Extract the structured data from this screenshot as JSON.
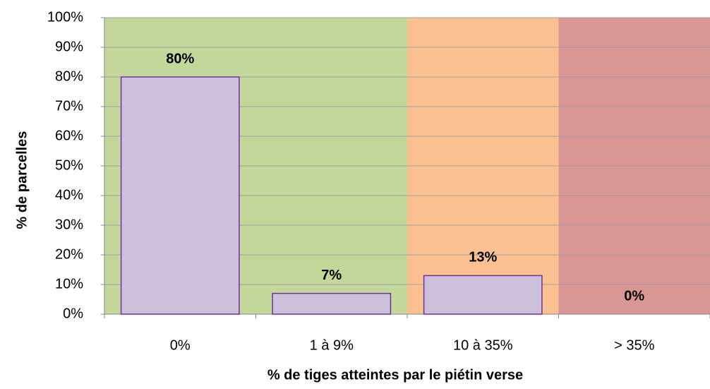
{
  "chart_data": {
    "type": "bar",
    "x_label": "% de tiges atteintes par le piétin verse",
    "y_label": "% de parcelles",
    "categories": [
      "0%",
      "1 à 9%",
      "10 à 35%",
      "> 35%"
    ],
    "values": [
      80,
      7,
      13,
      0
    ],
    "value_labels": [
      "80%",
      "7%",
      "13%",
      "0%"
    ],
    "color": "#ccc0da",
    "edge_color": "#7030a0",
    "background_colors": [
      "#c4d79b",
      "#c4d79b",
      "#fac090",
      "#d99694"
    ],
    "ylim": [
      0,
      100
    ],
    "yticks": [
      {
        "value": 0,
        "label": "0%"
      },
      {
        "value": 10,
        "label": "10%"
      },
      {
        "value": 20,
        "label": "20%"
      },
      {
        "value": 30,
        "label": "30%"
      },
      {
        "value": 40,
        "label": "40%"
      },
      {
        "value": 50,
        "label": "50%"
      },
      {
        "value": 60,
        "label": "60%"
      },
      {
        "value": 70,
        "label": "70%"
      },
      {
        "value": 80,
        "label": "80%"
      },
      {
        "value": 90,
        "label": "90%"
      },
      {
        "value": 100,
        "label": "100%"
      }
    ],
    "grid": true
  }
}
